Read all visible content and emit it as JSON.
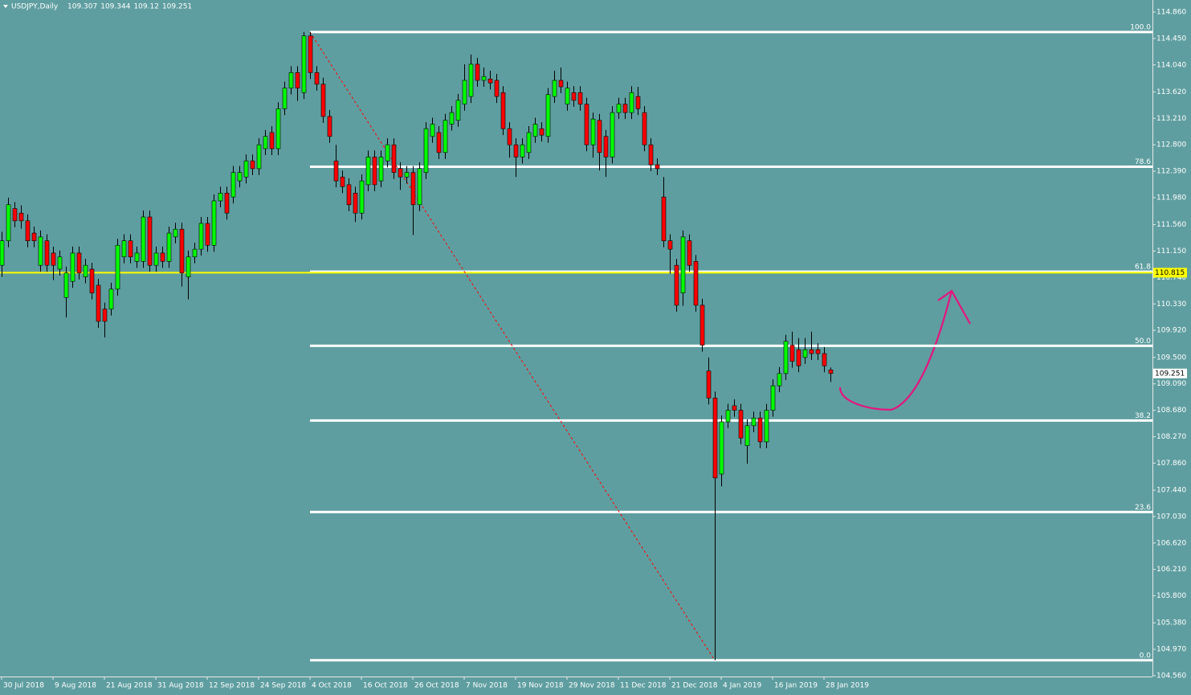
{
  "chart_data": {
    "type": "candlestick",
    "title": "USDJPY,Daily",
    "ylim": [
      104.56,
      114.86
    ],
    "yticks": [
      {
        "value": 114.86,
        "label": "114.860"
      },
      {
        "value": 114.45,
        "label": "114.450"
      },
      {
        "value": 114.04,
        "label": "114.040"
      },
      {
        "value": 113.62,
        "label": "113.620"
      },
      {
        "value": 113.21,
        "label": "113.210"
      },
      {
        "value": 112.8,
        "label": "112.800"
      },
      {
        "value": 112.39,
        "label": "112.390"
      },
      {
        "value": 111.98,
        "label": "111.980"
      },
      {
        "value": 111.56,
        "label": "111.560"
      },
      {
        "value": 111.15,
        "label": "111.150"
      },
      {
        "value": 110.74,
        "label": "110.740"
      },
      {
        "value": 110.33,
        "label": "110.330"
      },
      {
        "value": 109.92,
        "label": "109.920"
      },
      {
        "value": 109.5,
        "label": "109.500"
      },
      {
        "value": 109.09,
        "label": "109.090"
      },
      {
        "value": 108.68,
        "label": "108.680"
      },
      {
        "value": 108.27,
        "label": "108.270"
      },
      {
        "value": 107.86,
        "label": "107.860"
      },
      {
        "value": 107.44,
        "label": "107.440"
      },
      {
        "value": 107.03,
        "label": "107.030"
      },
      {
        "value": 106.62,
        "label": "106.620"
      },
      {
        "value": 106.21,
        "label": "106.210"
      },
      {
        "value": 105.8,
        "label": "105.800"
      },
      {
        "value": 105.38,
        "label": "105.380"
      },
      {
        "value": 104.97,
        "label": "104.970"
      },
      {
        "value": 104.56,
        "label": "104.560"
      }
    ],
    "up_color": "#00ff00",
    "down_color": "#ff0000",
    "categories": [
      "30 Jul 2018",
      null,
      null,
      null,
      null,
      null,
      null,
      null,
      "9 Aug 2018",
      null,
      null,
      null,
      null,
      null,
      null,
      null,
      "21 Aug 2018",
      null,
      null,
      null,
      null,
      null,
      null,
      null,
      "31 Aug 2018",
      null,
      null,
      null,
      null,
      null,
      null,
      null,
      "12 Sep 2018",
      null,
      null,
      null,
      null,
      null,
      null,
      null,
      "24 Sep 2018",
      null,
      null,
      null,
      null,
      null,
      null,
      null,
      "4 Oct 2018",
      null,
      null,
      null,
      null,
      null,
      null,
      null,
      "16 Oct 2018",
      null,
      null,
      null,
      null,
      null,
      null,
      null,
      "26 Oct 2018",
      null,
      null,
      null,
      null,
      null,
      null,
      null,
      "7 Nov 2018",
      null,
      null,
      null,
      null,
      null,
      null,
      null,
      "19 Nov 2018",
      null,
      null,
      null,
      null,
      null,
      null,
      null,
      "29 Nov 2018",
      null,
      null,
      null,
      null,
      null,
      null,
      null,
      "11 Dec 2018",
      null,
      null,
      null,
      null,
      null,
      null,
      null,
      "21 Dec 2018",
      null,
      null,
      null,
      null,
      null,
      null,
      null,
      "4 Jan 2019",
      null,
      null,
      null,
      null,
      null,
      null,
      null,
      "16 Jan 2019",
      null,
      null,
      null,
      null,
      null,
      null,
      null,
      "28 Jan 2019",
      null
    ],
    "ohlc": [
      [
        110.93,
        111.45,
        110.75,
        111.31
      ],
      [
        111.31,
        111.98,
        111.21,
        111.87
      ],
      [
        111.81,
        111.91,
        111.52,
        111.62
      ],
      [
        111.74,
        111.86,
        111.5,
        111.62
      ],
      [
        111.62,
        111.72,
        111.21,
        111.31
      ],
      [
        111.43,
        111.53,
        111.21,
        111.31
      ],
      [
        110.93,
        111.47,
        110.83,
        111.37
      ],
      [
        111.31,
        111.41,
        110.83,
        110.93
      ],
      [
        111.12,
        111.22,
        110.7,
        110.93
      ],
      [
        110.87,
        111.16,
        110.77,
        111.06
      ],
      [
        110.43,
        110.91,
        110.12,
        110.81
      ],
      [
        110.68,
        111.22,
        110.58,
        111.12
      ],
      [
        111.12,
        111.22,
        110.71,
        110.81
      ],
      [
        110.75,
        111.03,
        110.65,
        110.93
      ],
      [
        110.87,
        110.97,
        110.4,
        110.5
      ],
      [
        110.62,
        110.72,
        109.96,
        110.06
      ],
      [
        110.25,
        110.35,
        109.81,
        110.06
      ],
      [
        110.25,
        110.66,
        110.15,
        110.56
      ],
      [
        110.56,
        111.34,
        110.46,
        111.24
      ],
      [
        111.06,
        111.41,
        110.96,
        111.31
      ],
      [
        111.31,
        111.41,
        110.96,
        111.06
      ],
      [
        110.99,
        111.22,
        110.89,
        111.12
      ],
      [
        110.99,
        111.78,
        110.89,
        111.68
      ],
      [
        111.68,
        111.78,
        110.83,
        110.93
      ],
      [
        110.93,
        111.22,
        110.83,
        111.12
      ],
      [
        111.12,
        111.22,
        110.89,
        110.99
      ],
      [
        110.99,
        111.53,
        110.89,
        111.43
      ],
      [
        111.37,
        111.59,
        111.27,
        111.49
      ],
      [
        111.49,
        111.59,
        110.6,
        110.81
      ],
      [
        110.75,
        111.16,
        110.4,
        111.06
      ],
      [
        111.06,
        111.28,
        110.96,
        111.18
      ],
      [
        111.18,
        111.68,
        111.08,
        111.58
      ],
      [
        111.58,
        111.68,
        111.14,
        111.24
      ],
      [
        111.24,
        112.03,
        111.14,
        111.93
      ],
      [
        111.93,
        112.15,
        111.83,
        112.05
      ],
      [
        112.05,
        112.15,
        111.64,
        111.74
      ],
      [
        111.99,
        112.47,
        111.89,
        112.37
      ],
      [
        112.24,
        112.47,
        112.14,
        112.37
      ],
      [
        112.3,
        112.65,
        112.2,
        112.55
      ],
      [
        112.55,
        112.65,
        112.33,
        112.43
      ],
      [
        112.43,
        112.9,
        112.33,
        112.8
      ],
      [
        112.74,
        113.03,
        112.64,
        112.93
      ],
      [
        112.99,
        113.09,
        112.64,
        112.74
      ],
      [
        112.74,
        113.46,
        112.64,
        113.36
      ],
      [
        113.36,
        113.78,
        113.26,
        113.68
      ],
      [
        113.68,
        114.02,
        113.58,
        113.92
      ],
      [
        113.92,
        114.02,
        113.48,
        113.68
      ],
      [
        113.61,
        114.55,
        113.51,
        114.49
      ],
      [
        114.49,
        114.55,
        113.82,
        113.92
      ],
      [
        113.92,
        114.02,
        113.64,
        113.74
      ],
      [
        113.74,
        113.84,
        113.14,
        113.24
      ],
      [
        113.24,
        113.34,
        112.83,
        112.93
      ],
      [
        112.55,
        112.8,
        112.14,
        112.24
      ],
      [
        112.3,
        112.4,
        112.05,
        112.15
      ],
      [
        112.18,
        112.28,
        111.77,
        111.87
      ],
      [
        112.05,
        112.15,
        111.6,
        111.74
      ],
      [
        111.74,
        112.34,
        111.64,
        112.24
      ],
      [
        112.18,
        112.71,
        112.08,
        112.61
      ],
      [
        112.61,
        112.71,
        112.08,
        112.18
      ],
      [
        112.24,
        112.71,
        112.14,
        112.61
      ],
      [
        112.55,
        112.9,
        112.45,
        112.8
      ],
      [
        112.8,
        112.9,
        112.27,
        112.37
      ],
      [
        112.43,
        112.53,
        112.1,
        112.3
      ],
      [
        112.3,
        112.47,
        112.2,
        112.37
      ],
      [
        112.37,
        112.47,
        111.4,
        111.87
      ],
      [
        111.87,
        112.53,
        111.77,
        112.43
      ],
      [
        112.37,
        113.15,
        112.27,
        113.05
      ],
      [
        112.93,
        113.22,
        112.83,
        113.12
      ],
      [
        112.99,
        113.09,
        112.58,
        112.68
      ],
      [
        112.68,
        113.28,
        112.58,
        113.18
      ],
      [
        113.12,
        113.4,
        113.02,
        113.3
      ],
      [
        113.18,
        113.59,
        113.08,
        113.49
      ],
      [
        113.43,
        114.05,
        113.33,
        113.8
      ],
      [
        113.55,
        114.2,
        113.45,
        114.05
      ],
      [
        114.05,
        114.15,
        113.7,
        113.8
      ],
      [
        113.8,
        114.0,
        113.7,
        113.86
      ],
      [
        113.82,
        113.95,
        113.66,
        113.76
      ],
      [
        113.8,
        113.9,
        113.45,
        113.55
      ],
      [
        113.61,
        113.71,
        112.95,
        113.05
      ],
      [
        113.05,
        113.15,
        112.6,
        112.8
      ],
      [
        112.8,
        112.9,
        112.3,
        112.61
      ],
      [
        112.61,
        112.9,
        112.51,
        112.8
      ],
      [
        112.68,
        113.09,
        112.58,
        112.99
      ],
      [
        112.93,
        113.22,
        112.83,
        113.12
      ],
      [
        113.05,
        113.15,
        112.85,
        112.95
      ],
      [
        112.93,
        113.68,
        112.83,
        113.58
      ],
      [
        113.55,
        113.95,
        113.45,
        113.8
      ],
      [
        113.8,
        114.0,
        113.6,
        113.7
      ],
      [
        113.43,
        113.78,
        113.33,
        113.68
      ],
      [
        113.61,
        113.71,
        113.39,
        113.49
      ],
      [
        113.61,
        113.71,
        113.33,
        113.43
      ],
      [
        113.43,
        113.53,
        112.7,
        112.8
      ],
      [
        112.8,
        113.3,
        112.6,
        113.2
      ],
      [
        113.18,
        113.28,
        112.4,
        112.68
      ],
      [
        112.93,
        113.03,
        112.3,
        112.61
      ],
      [
        112.61,
        113.4,
        112.51,
        113.3
      ],
      [
        113.3,
        113.53,
        113.2,
        113.43
      ],
      [
        113.43,
        113.53,
        113.2,
        113.3
      ],
      [
        113.3,
        113.71,
        113.2,
        113.61
      ],
      [
        113.55,
        113.7,
        113.26,
        113.36
      ],
      [
        113.3,
        113.4,
        112.7,
        112.8
      ],
      [
        112.8,
        112.9,
        112.39,
        112.49
      ],
      [
        112.49,
        112.59,
        112.33,
        112.43
      ],
      [
        111.99,
        112.3,
        111.21,
        111.31
      ],
      [
        111.31,
        111.41,
        110.8,
        111.18
      ],
      [
        110.93,
        111.03,
        110.21,
        110.31
      ],
      [
        110.5,
        111.47,
        110.3,
        111.37
      ],
      [
        111.31,
        111.41,
        110.83,
        110.93
      ],
      [
        110.99,
        111.09,
        110.21,
        110.31
      ],
      [
        110.31,
        110.41,
        109.59,
        109.69
      ],
      [
        109.29,
        109.5,
        108.77,
        108.87
      ],
      [
        108.87,
        108.97,
        104.8,
        107.63
      ],
      [
        107.69,
        108.6,
        107.5,
        108.5
      ],
      [
        108.5,
        108.78,
        108.4,
        108.68
      ],
      [
        108.75,
        108.85,
        108.58,
        108.68
      ],
      [
        108.68,
        108.78,
        108.15,
        108.25
      ],
      [
        108.13,
        108.54,
        107.85,
        108.44
      ],
      [
        108.44,
        108.66,
        108.34,
        108.56
      ],
      [
        108.56,
        108.66,
        108.09,
        108.19
      ],
      [
        108.19,
        108.78,
        108.09,
        108.68
      ],
      [
        108.68,
        109.16,
        108.58,
        109.06
      ],
      [
        109.06,
        109.35,
        108.96,
        109.25
      ],
      [
        109.25,
        109.85,
        109.15,
        109.75
      ],
      [
        109.69,
        109.9,
        109.34,
        109.44
      ],
      [
        109.62,
        109.8,
        109.27,
        109.37
      ],
      [
        109.5,
        109.8,
        109.4,
        109.62
      ],
      [
        109.62,
        109.9,
        109.46,
        109.56
      ],
      [
        109.62,
        109.72,
        109.46,
        109.56
      ],
      [
        109.56,
        109.66,
        109.27,
        109.37
      ],
      [
        109.307,
        109.344,
        109.12,
        109.251
      ]
    ],
    "fibonacci": {
      "color": "#ffffff",
      "start": 48,
      "levels": [
        {
          "value": 100,
          "label": "100.0",
          "price": 114.55
        },
        {
          "value": 78.6,
          "label": "78.6",
          "price": 112.46
        },
        {
          "value": 61.8,
          "label": "61.8",
          "price": 110.83
        },
        {
          "value": 50,
          "label": "50.0",
          "price": 109.68
        },
        {
          "value": 38.2,
          "label": "38.2",
          "price": 108.52
        },
        {
          "value": 23.6,
          "label": "23.6",
          "price": 107.1
        },
        {
          "value": 0,
          "label": "0.0",
          "price": 104.8
        }
      ]
    },
    "hline": {
      "value": 110.815,
      "color": "#ffff00"
    },
    "trendline": {
      "from": [
        48,
        114.55
      ],
      "to": [
        111,
        104.8
      ],
      "color": "#ff0000"
    }
  }
}
